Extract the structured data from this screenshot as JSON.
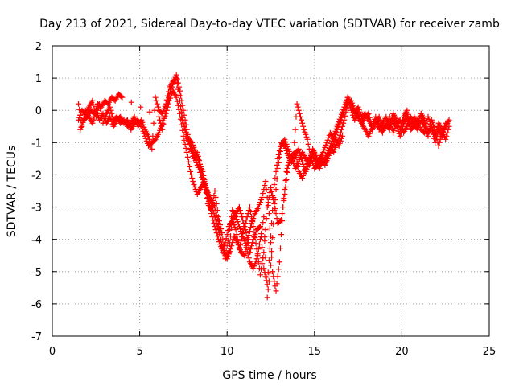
{
  "chart_data": {
    "type": "scatter",
    "title": "Day 213 of 2021, Sidereal Day-to-day VTEC variation (SDTVAR) for receiver zamb",
    "xlabel": "GPS time / hours",
    "ylabel": "SDTVAR / TECUs",
    "xlim": [
      0,
      25
    ],
    "ylim": [
      -7,
      2
    ],
    "xticks": [
      "0",
      "5",
      "10",
      "15",
      "20",
      "25"
    ],
    "yticks": [
      "2",
      "1",
      "0",
      "-1",
      "-2",
      "-3",
      "-4",
      "-5",
      "-6",
      "-7"
    ],
    "xtick_values": [
      0,
      5,
      10,
      15,
      20,
      25
    ],
    "ytick_values": [
      2,
      1,
      0,
      -1,
      -2,
      -3,
      -4,
      -5,
      -6,
      -7
    ],
    "grid": true,
    "marker": "+",
    "series": [
      {
        "color": "#ff0000",
        "x": [
          1.5,
          1.7,
          1.9,
          2.1,
          2.3,
          2.5,
          2.7,
          2.9,
          3.1,
          3.3,
          3.5,
          3.7,
          3.9,
          4.1,
          4.3,
          4.5,
          4.7,
          4.9,
          5.1,
          5.3,
          5.5,
          5.7,
          5.9,
          6.1,
          6.3,
          6.5,
          6.7,
          6.9,
          7.1,
          7.3,
          7.5,
          7.7,
          7.9,
          8.1,
          8.3,
          8.5,
          8.7,
          8.9,
          9.1,
          9.3,
          9.5,
          9.7,
          9.9,
          10.1,
          10.3,
          10.5,
          10.7,
          10.9,
          11.1,
          11.3,
          11.5,
          11.7,
          11.9,
          12.1,
          12.3,
          12.5,
          12.7,
          12.9,
          13.1,
          13.3,
          13.5,
          13.7,
          13.9,
          14.1,
          14.3,
          14.5,
          14.7,
          14.9,
          15.1,
          15.3,
          15.5,
          15.7,
          15.9,
          16.1,
          16.3,
          16.5,
          16.7,
          16.9,
          17.1,
          17.3,
          17.5,
          17.7,
          17.9,
          18.1,
          18.3,
          18.5,
          18.7,
          18.9,
          19.1,
          19.3,
          19.5,
          19.7,
          19.9,
          20.1,
          20.3,
          20.5,
          20.7,
          20.9,
          21.1,
          21.3,
          21.5,
          21.7,
          21.9,
          22.1,
          22.3,
          22.5,
          22.7
        ],
        "y": [
          -0.3,
          0.0,
          -0.1,
          0.1,
          0.3,
          -0.2,
          0.2,
          -0.4,
          -0.1,
          0.1,
          -0.3,
          -0.2,
          -0.4,
          -0.3,
          -0.5,
          -0.4,
          -0.2,
          -0.5,
          -0.3,
          -0.6,
          -0.8,
          -1.2,
          0.4,
          0.0,
          -0.1,
          0.2,
          0.7,
          0.9,
          1.0,
          0.3,
          -0.4,
          -0.8,
          -1.1,
          -1.4,
          -1.7,
          -2.0,
          -2.3,
          -2.6,
          -2.8,
          -3.0,
          -3.5,
          -4.2,
          -4.5,
          -3.9,
          -3.1,
          -3.3,
          -3.6,
          -3.9,
          -4.2,
          -4.7,
          -4.9,
          -4.6,
          -4.0,
          -3.3,
          -5.8,
          -4.8,
          -3.1,
          -1.8,
          -1.1,
          -0.9,
          -1.2,
          -1.5,
          -1.8,
          -1.6,
          -1.3,
          -1.5,
          -1.7,
          -1.4,
          -1.6,
          -1.8,
          -1.5,
          -1.6,
          -1.2,
          -1.3,
          -1.0,
          -0.7,
          -0.3,
          0.2,
          0.3,
          0.0,
          -0.2,
          -0.4,
          -0.6,
          -0.8,
          -0.5,
          -0.2,
          -0.5,
          -0.7,
          -0.4,
          -0.6,
          -0.3,
          -0.5,
          -0.8,
          -0.4,
          -0.2,
          -0.6,
          -0.5,
          -0.3,
          -0.6,
          -0.7,
          -0.2,
          -0.5,
          -0.8,
          -0.4,
          -0.6,
          -0.9,
          -0.5
        ]
      },
      {
        "color": "#ff0000",
        "x": [
          1.6,
          1.8,
          2.0,
          2.2,
          2.4,
          2.6,
          2.8,
          3.0,
          3.2,
          3.4,
          3.6,
          3.8,
          4.0,
          6.1,
          6.3,
          6.5,
          6.7,
          6.9,
          7.1,
          7.3,
          7.5,
          7.7,
          7.9,
          8.1,
          8.3,
          8.5,
          8.7,
          8.9,
          9.1,
          9.3,
          9.5,
          9.7,
          9.9,
          10.1,
          10.3,
          10.5,
          10.7,
          10.9,
          11.1,
          11.3,
          11.5,
          11.7,
          11.9,
          12.1,
          12.3,
          12.5,
          12.7,
          12.9,
          13.1,
          13.3,
          13.5,
          13.7,
          13.9,
          14.1,
          14.3,
          14.5,
          14.7,
          14.9,
          15.1,
          15.3,
          15.5,
          15.7,
          15.9,
          16.1,
          16.3,
          16.5,
          16.7,
          16.9,
          17.1,
          17.3,
          17.5,
          17.7,
          17.9,
          18.1,
          18.3,
          18.5,
          18.7,
          18.9,
          19.1,
          19.3,
          19.5,
          19.7,
          19.9,
          20.1,
          20.3,
          20.5,
          20.7,
          20.9,
          21.1,
          21.3,
          21.5,
          21.7,
          21.9,
          22.1,
          22.3,
          22.5
        ],
        "y": [
          -0.6,
          -0.3,
          -0.2,
          0.0,
          -0.1,
          0.2,
          0.1,
          0.3,
          0.2,
          0.4,
          0.3,
          0.5,
          0.4,
          -0.2,
          -0.6,
          0.1,
          0.5,
          0.8,
          1.1,
          0.6,
          0.0,
          -0.6,
          -1.2,
          -1.5,
          -1.3,
          -1.8,
          -2.2,
          -2.9,
          -3.1,
          -2.5,
          -3.3,
          -3.8,
          -4.6,
          -4.4,
          -3.4,
          -3.7,
          -4.3,
          -3.8,
          -3.4,
          -3.0,
          -3.6,
          -4.3,
          -5.1,
          -4.4,
          -3.0,
          -2.4,
          -2.9,
          -3.5,
          -3.4,
          -2.6,
          -1.7,
          -1.4,
          -1.3,
          -1.9,
          -2.1,
          -1.8,
          -1.5,
          -1.3,
          -1.7,
          -1.5,
          -1.3,
          -1.0,
          -0.7,
          -0.9,
          -0.6,
          -0.3,
          0.0,
          0.4,
          0.2,
          -0.1,
          0.1,
          -0.2,
          -0.1,
          -0.3,
          -0.5,
          -0.3,
          -0.6,
          -0.4,
          -0.2,
          -0.5,
          -0.1,
          -0.3,
          -0.6,
          -0.2,
          0.0,
          -0.5,
          -0.2,
          -0.4,
          -0.1,
          -0.3,
          -0.7,
          -0.5,
          -1.0,
          -0.6,
          -0.8,
          -0.4
        ]
      },
      {
        "color": "#ff0000",
        "x": [
          1.5,
          1.7,
          1.9,
          2.1,
          2.3,
          2.5,
          2.7,
          2.9,
          3.1,
          3.3,
          3.5,
          3.7,
          3.9,
          4.1,
          4.3,
          4.5,
          4.7,
          4.9,
          5.1,
          5.3,
          5.5,
          5.7,
          5.9,
          6.1,
          6.3,
          6.5,
          6.7,
          6.9,
          7.1,
          7.3,
          7.5,
          7.7,
          7.9,
          8.1,
          8.3,
          8.5,
          8.7,
          8.9,
          9.1,
          9.3,
          9.5,
          9.7,
          9.9,
          10.1,
          10.3,
          10.5,
          10.7,
          10.9,
          11.1,
          11.3,
          11.5,
          11.7,
          11.9,
          12.1,
          12.3,
          12.5,
          12.7,
          12.9,
          13.1,
          13.3,
          13.5,
          13.7,
          13.9,
          14.1,
          14.3,
          14.5,
          14.7,
          14.9,
          15.1,
          15.3,
          15.5,
          15.7,
          15.9,
          16.1,
          16.3,
          16.5,
          16.7,
          16.9,
          17.1,
          17.3,
          17.5,
          17.7,
          17.9,
          18.1,
          18.3,
          18.5,
          18.7,
          18.9,
          19.1,
          19.3,
          19.5,
          19.7,
          19.9,
          20.1,
          20.3,
          20.5,
          20.7,
          20.9,
          21.1,
          21.3,
          21.5,
          21.7,
          21.9,
          22.1,
          22.3,
          22.5,
          22.7
        ],
        "y": [
          0.2,
          -0.5,
          0.0,
          -0.2,
          -0.4,
          0.0,
          -0.3,
          -0.1,
          -0.4,
          -0.2,
          -0.5,
          -0.3,
          -0.2,
          -0.4,
          -0.3,
          -0.6,
          -0.4,
          -0.3,
          -0.5,
          -0.8,
          -1.1,
          -1.0,
          -0.9,
          -0.7,
          -0.4,
          -0.1,
          0.3,
          0.6,
          0.4,
          -0.1,
          -0.8,
          -1.3,
          -1.9,
          -2.3,
          -2.6,
          -2.4,
          -2.2,
          -2.7,
          -3.2,
          -3.6,
          -4.0,
          -4.3,
          -4.1,
          -3.6,
          -3.4,
          -3.2,
          -3.0,
          -3.4,
          -3.8,
          -4.4,
          -4.0,
          -3.7,
          -3.6,
          -4.9,
          -5.4,
          -3.9,
          -2.3,
          -1.5,
          -1.0,
          -1.1,
          -1.4,
          -1.6,
          -1.4,
          -1.2,
          -1.6,
          -1.9,
          -1.6,
          -1.2,
          -1.4,
          -1.7,
          -1.6,
          -1.4,
          -1.1,
          -0.8,
          -0.5,
          -0.2,
          0.1,
          0.4,
          0.0,
          -0.3,
          -0.1,
          -0.4,
          -0.2,
          -0.1,
          -0.6,
          -0.4,
          -0.2,
          -0.6,
          -0.5,
          -0.2,
          -0.7,
          -0.4,
          -0.3,
          -0.7,
          -0.5,
          -0.2,
          -0.4,
          -0.6,
          -0.3,
          -0.5,
          -0.8,
          -0.3,
          -0.6,
          -1.1,
          -0.7,
          -0.5,
          -0.3
        ]
      },
      {
        "color": "#ff0000",
        "x": [
          7.4,
          7.6,
          7.8,
          8.0,
          8.2,
          8.4,
          8.6,
          8.8,
          9.0,
          9.2,
          9.4,
          9.6,
          9.8,
          10.0,
          10.2,
          10.4,
          10.6,
          10.8,
          11.0,
          11.2,
          11.4,
          11.6,
          11.8,
          12.0,
          12.2,
          12.4,
          12.6,
          12.8,
          13.0,
          13.2,
          13.4,
          13.6,
          13.8,
          14.0,
          14.2,
          14.4,
          14.6,
          14.8,
          15.0,
          15.2,
          15.4,
          15.6,
          15.8,
          16.0,
          16.2,
          16.4,
          16.6
        ],
        "y": [
          -0.2,
          -0.6,
          -0.9,
          -1.0,
          -1.3,
          -1.6,
          -1.9,
          -2.4,
          -2.7,
          -3.1,
          -3.5,
          -3.9,
          -4.4,
          -4.6,
          -4.3,
          -3.9,
          -4.1,
          -4.4,
          -4.5,
          -4.0,
          -3.5,
          -3.2,
          -3.0,
          -2.7,
          -2.2,
          -3.2,
          -5.0,
          -5.6,
          -4.7,
          -3.0,
          -1.9,
          -1.5,
          -1.4,
          0.2,
          -0.2,
          -0.6,
          -0.9,
          -1.5,
          -1.8,
          -1.7,
          -1.5,
          -1.7,
          -1.4,
          -1.2,
          -0.9,
          -1.1,
          -0.8
        ]
      }
    ]
  }
}
